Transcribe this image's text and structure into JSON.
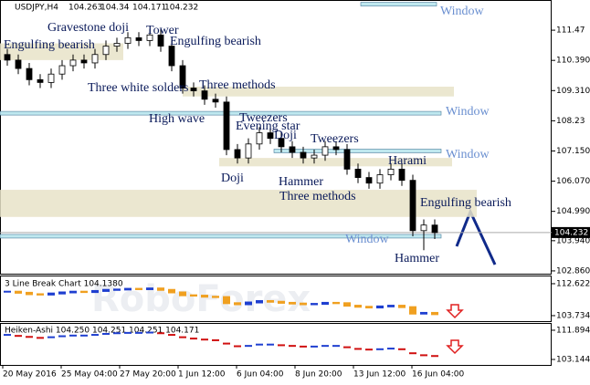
{
  "chart_data": {
    "type": "candlestick",
    "symbol": "USDJPY,H4",
    "ohlc": [
      104.263,
      104.34,
      104.171,
      104.232
    ],
    "last_price": {
      "value": 104.232,
      "label": "104.232"
    },
    "watermark": "RoboForex",
    "open": [
      110.6,
      110.4,
      110.1,
      109.7,
      109.6,
      109.9,
      110.2,
      110.4,
      110.3,
      110.6,
      110.9,
      111.0,
      111.2,
      111.1,
      111.3,
      110.9,
      110.2,
      109.4,
      109.3,
      109.0,
      108.9,
      107.2,
      106.9,
      107.4,
      107.8,
      107.6,
      107.3,
      107.1,
      106.9,
      107.0,
      107.3,
      107.2,
      106.5,
      106.2,
      106.0,
      106.3,
      106.5,
      106.1,
      104.3,
      104.5
    ],
    "high": [
      110.8,
      110.6,
      110.3,
      109.9,
      110.1,
      110.4,
      110.6,
      110.6,
      110.8,
      111.1,
      111.2,
      111.4,
      111.4,
      111.5,
      111.5,
      111.1,
      110.4,
      109.6,
      109.5,
      109.2,
      109.1,
      107.4,
      107.6,
      108.0,
      108.0,
      107.8,
      107.5,
      107.3,
      107.2,
      107.5,
      107.5,
      107.4,
      106.7,
      106.4,
      106.5,
      106.7,
      106.7,
      106.3,
      104.7,
      104.7
    ],
    "low": [
      110.2,
      109.9,
      109.5,
      109.4,
      109.4,
      109.7,
      110.0,
      110.1,
      110.1,
      110.4,
      110.7,
      110.8,
      110.9,
      110.9,
      110.7,
      110.0,
      109.2,
      109.1,
      108.8,
      108.7,
      107.0,
      106.7,
      106.7,
      107.2,
      107.4,
      107.1,
      106.9,
      106.7,
      106.7,
      106.8,
      107.0,
      106.3,
      106.0,
      105.8,
      105.8,
      106.1,
      105.9,
      104.1,
      103.6,
      104.0
    ],
    "close": [
      110.4,
      110.1,
      109.7,
      109.6,
      109.9,
      110.2,
      110.4,
      110.3,
      110.6,
      110.9,
      111.0,
      111.2,
      111.1,
      111.3,
      110.9,
      110.2,
      109.4,
      109.3,
      109.0,
      108.9,
      107.2,
      106.9,
      107.4,
      107.8,
      107.6,
      107.3,
      107.1,
      106.9,
      107.0,
      107.3,
      107.2,
      106.5,
      106.2,
      106.0,
      106.3,
      106.5,
      106.1,
      104.3,
      104.5,
      104.23
    ],
    "ylim": [
      102.76,
      112.55
    ],
    "yticks": [
      111.47,
      {
        "value": 110.39,
        "label": "110.390"
      },
      {
        "value": 109.31,
        "label": "109.310"
      },
      108.23,
      {
        "value": 107.15,
        "label": "107.150"
      },
      {
        "value": 106.07,
        "label": "106.070"
      },
      {
        "value": 104.99,
        "label": "104.990"
      },
      {
        "value": 103.94,
        "label": "103.940"
      },
      {
        "value": 102.86,
        "label": "102.860"
      }
    ],
    "zones": [
      [
        110.4,
        111.0
      ],
      [
        109.1,
        109.45
      ],
      [
        106.6,
        106.9
      ],
      [
        104.79,
        105.76
      ]
    ],
    "windows": [
      112.4,
      108.5,
      107.15,
      104.1
    ],
    "window_label": "Window",
    "annotations": [
      "Engulfing bearish",
      "Gravestone doji",
      "Tower",
      "Engulfing bearish",
      "Three white solders",
      "Three methods",
      "High wave",
      "Tweezers",
      "Evening star",
      "Doji",
      "Doji",
      "Tweezers",
      "Harami",
      "Hammer",
      "Three methods",
      "Engulfing bearish",
      "Hammer"
    ],
    "time_labels": [
      "20 May 2016",
      "25 May 04:00",
      "27 May 20:00",
      "1 Jun 12:00",
      "6 Jun 04:00",
      "8 Jun 20:00",
      "13 Jun 12:00",
      "16 Jun 04:00"
    ],
    "line_break": {
      "title": "3 Line Break Chart 104.1380",
      "ylim": [
        102.2,
        114.9
      ],
      "yticks": [
        112.622,
        103.734
      ],
      "values": [
        110.4,
        110.1,
        109.7,
        109.6,
        109.9,
        110.2,
        110.4,
        110.3,
        110.6,
        110.9,
        111.0,
        111.2,
        111.1,
        111.3,
        110.9,
        110.2,
        109.4,
        109.3,
        109.0,
        108.9,
        107.2,
        106.9,
        107.4,
        107.8,
        107.6,
        107.3,
        107.1,
        106.9,
        107.0,
        107.3,
        107.2,
        106.5,
        106.2,
        106.0,
        106.3,
        106.5,
        106.1,
        104.3,
        104.5,
        104.138
      ],
      "up_color": "#1f3fd0",
      "down_color": "#f0a020"
    },
    "heiken_ashi": {
      "title": "Heiken-Ashi 104.250 104.251 104.251 104.171",
      "ylim": [
        101.5,
        113.8
      ],
      "yticks": [
        111.894,
        103.144
      ],
      "values": [
        110.5,
        110.2,
        109.9,
        109.6,
        109.8,
        110.1,
        110.3,
        110.3,
        110.5,
        110.8,
        111.0,
        111.1,
        111.1,
        111.2,
        111.0,
        110.5,
        109.8,
        109.4,
        109.1,
        108.9,
        107.9,
        107.1,
        107.2,
        107.6,
        107.6,
        107.4,
        107.2,
        107.0,
        107.0,
        107.2,
        107.2,
        106.8,
        106.3,
        106.1,
        106.2,
        106.4,
        106.2,
        105.0,
        104.4,
        104.171
      ],
      "up_color": "#1f3fd0",
      "down_color": "#d01010"
    }
  }
}
